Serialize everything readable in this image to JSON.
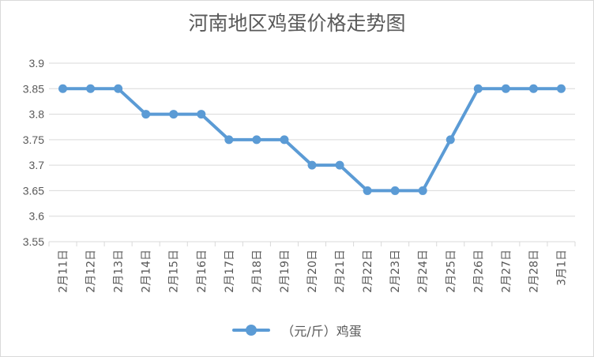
{
  "chart_data": {
    "type": "line",
    "title": "河南地区鸡蛋价格走势图",
    "categories": [
      "2月11日",
      "2月12日",
      "2月13日",
      "2月14日",
      "2月15日",
      "2月16日",
      "2月17日",
      "2月18日",
      "2月19日",
      "2月20日",
      "2月21日",
      "2月22日",
      "2月23日",
      "2月24日",
      "2月25日",
      "2月26日",
      "2月27日",
      "2月28日",
      "3月1日"
    ],
    "series": [
      {
        "name": "（元/斤）鸡蛋",
        "color": "#5b9bd5",
        "values": [
          3.85,
          3.85,
          3.85,
          3.8,
          3.8,
          3.8,
          3.75,
          3.75,
          3.75,
          3.7,
          3.7,
          3.65,
          3.65,
          3.65,
          3.75,
          3.85,
          3.85,
          3.85,
          3.85
        ]
      }
    ],
    "y_ticks": [
      "3.55",
      "3.6",
      "3.65",
      "3.7",
      "3.75",
      "3.8",
      "3.85",
      "3.9"
    ],
    "ylim": [
      3.55,
      3.9
    ],
    "grid": true,
    "legend_position": "bottom",
    "xlabel": "",
    "ylabel": ""
  }
}
